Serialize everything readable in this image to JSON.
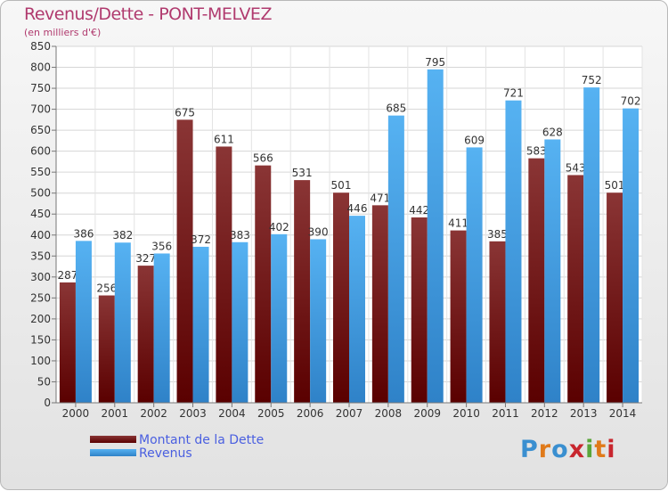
{
  "chart_data": {
    "type": "bar",
    "title": "Revenus/Dette - PONT-MELVEZ",
    "subtitle": "(en milliers d'€)",
    "categories": [
      "2000",
      "2001",
      "2002",
      "2003",
      "2004",
      "2005",
      "2006",
      "2007",
      "2008",
      "2009",
      "2010",
      "2011",
      "2012",
      "2013",
      "2014"
    ],
    "series": [
      {
        "name": "Montant de la Dette",
        "color": "#6e1515",
        "values": [
          287,
          256,
          327,
          675,
          611,
          566,
          531,
          501,
          471,
          442,
          411,
          385,
          583,
          543,
          501
        ]
      },
      {
        "name": "Revenus",
        "color": "#3a9ee8",
        "values": [
          386,
          382,
          356,
          372,
          383,
          402,
          390,
          446,
          685,
          795,
          609,
          721,
          628,
          752,
          702
        ]
      }
    ],
    "ylim": [
      0,
      850
    ],
    "yticks": [
      0,
      50,
      100,
      150,
      200,
      250,
      300,
      350,
      400,
      450,
      500,
      550,
      600,
      650,
      700,
      750,
      800,
      850
    ],
    "grid": true,
    "legend_position": "bottom-left"
  },
  "logo": {
    "letters": [
      "P",
      "r",
      "o",
      "x",
      "i",
      "t",
      "i"
    ],
    "colors": [
      "#3a8fd0",
      "#e07a1a",
      "#3a8fd0",
      "#c8262e",
      "#5aa63a",
      "#e07a1a",
      "#c8262e"
    ]
  }
}
